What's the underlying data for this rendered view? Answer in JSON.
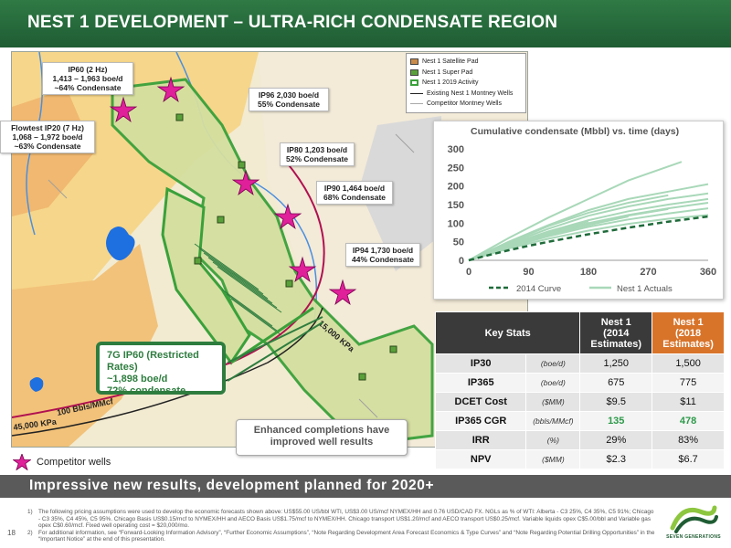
{
  "header": {
    "title": "NEST 1 DEVELOPMENT – ULTRA-RICH CONDENSATE REGION"
  },
  "colors": {
    "brand_green": "#1f5c33",
    "accent_orange": "#d8742a",
    "highlight_green": "#2e9a4a",
    "star_magenta": "#e0209a"
  },
  "map": {
    "legend": [
      {
        "label": "Nest 1 Satellite Pad",
        "kind": "swatch",
        "color": "#c98a4a"
      },
      {
        "label": "Nest 1 Super Pad",
        "kind": "swatch",
        "color": "#5aa03a"
      },
      {
        "label": "Nest 1 2019 Activity",
        "kind": "outline",
        "color": "#3aa13a"
      },
      {
        "label": "Existing Nest 1 Montney Wells",
        "kind": "line",
        "color": "#222222"
      },
      {
        "label": "Competitor Montney Wells",
        "kind": "line",
        "color": "#aaaaaa"
      }
    ],
    "callouts": {
      "ip60": [
        "IP60 (2 Hz)",
        "1,413 – 1,963 boe/d",
        "~64% Condensate"
      ],
      "flowtest": [
        "Flowtest IP20 (7 Hz)",
        "1,068 – 1,972 boe/d",
        "~63% Condensate"
      ],
      "ip96": [
        "IP96 2,030  boe/d",
        "55% Condensate"
      ],
      "ip80": [
        "IP80 1,203 boe/d",
        "52% Condensate"
      ],
      "ip90": [
        "IP90 1,464 boe/d",
        "68% Condensate"
      ],
      "ip94": [
        "IP94 1,730 boe/d",
        "44% Condensate"
      ]
    },
    "ig_callout": [
      "7G IP60 (Restricted Rates)",
      "~1,898 boe/d",
      "72% condensate"
    ],
    "enhanced_callout": [
      "Enhanced completions have",
      "improved well results"
    ],
    "pipeline_labels": [
      "100 Bbls/MMcf",
      "45,000 KPa",
      "15,000 KPa"
    ],
    "competitor_legend": "Competitor wells"
  },
  "chart_data": {
    "type": "line",
    "title": "Cumulative condensate (Mbbl) vs. time (days)",
    "xlabel": "",
    "ylabel": "",
    "xlim": [
      0,
      360
    ],
    "ylim": [
      0,
      300
    ],
    "x_ticks": [
      0,
      90,
      180,
      270,
      360
    ],
    "y_ticks": [
      0,
      50,
      100,
      150,
      200,
      250,
      300
    ],
    "legend_position": "bottom",
    "series": [
      {
        "name": "2014 Curve",
        "style": "dashed",
        "color": "#1f6b3a",
        "x": [
          0,
          30,
          60,
          90,
          120,
          150,
          180,
          210,
          240,
          270,
          300,
          330,
          360
        ],
        "y": [
          0,
          14,
          27,
          39,
          50,
          60,
          70,
          79,
          88,
          96,
          104,
          111,
          118
        ]
      },
      {
        "name": "Nest 1 Actuals",
        "style": "solid",
        "color": "#a8d8b8",
        "lines": [
          {
            "x": [
              0,
              60,
              120,
              180,
              240,
              320
            ],
            "y": [
              0,
              60,
              115,
              165,
              215,
              265
            ]
          },
          {
            "x": [
              0,
              60,
              120,
              180,
              240,
              300,
              360
            ],
            "y": [
              0,
              50,
              95,
              135,
              165,
              185,
              205
            ]
          },
          {
            "x": [
              0,
              60,
              120,
              180,
              240,
              300,
              360
            ],
            "y": [
              0,
              45,
              85,
              120,
              145,
              165,
              180
            ]
          },
          {
            "x": [
              0,
              60,
              120,
              180,
              240,
              300
            ],
            "y": [
              0,
              48,
              92,
              128,
              155,
              175
            ]
          },
          {
            "x": [
              0,
              60,
              120,
              180,
              240,
              300,
              360
            ],
            "y": [
              0,
              42,
              78,
              108,
              132,
              150,
              165
            ]
          },
          {
            "x": [
              0,
              60,
              120,
              180,
              240,
              300,
              360
            ],
            "y": [
              0,
              40,
              72,
              100,
              122,
              140,
              155
            ]
          },
          {
            "x": [
              0,
              60,
              120,
              180,
              240,
              300
            ],
            "y": [
              0,
              38,
              70,
              98,
              120,
              138
            ]
          },
          {
            "x": [
              0,
              60,
              120,
              180,
              240,
              300,
              360
            ],
            "y": [
              0,
              35,
              65,
              90,
              110,
              126,
              140
            ]
          },
          {
            "x": [
              0,
              60,
              120,
              180,
              240
            ],
            "y": [
              0,
              36,
              68,
              95,
              118
            ]
          },
          {
            "x": [
              0,
              60,
              120,
              180,
              240,
              300,
              360
            ],
            "y": [
              0,
              32,
              58,
              80,
              98,
              112,
              122
            ]
          },
          {
            "x": [
              0,
              60,
              120,
              180
            ],
            "y": [
              0,
              40,
              75,
              105
            ]
          }
        ]
      }
    ]
  },
  "stats": {
    "header": {
      "key": "Key Stats",
      "col2014": [
        "Nest 1",
        "(2014",
        "Estimates)"
      ],
      "col2018": [
        "Nest 1",
        "(2018",
        "Estimates)"
      ]
    },
    "rows": [
      {
        "label": "IP30",
        "unit": "(boe/d)",
        "v2014": "1,250",
        "v2018": "1,500",
        "highlight": false
      },
      {
        "label": "IP365",
        "unit": "(boe/d)",
        "v2014": "675",
        "v2018": "775",
        "highlight": false
      },
      {
        "label": "DCET Cost",
        "unit": "($MM)",
        "v2014": "$9.5",
        "v2018": "$11",
        "highlight": false
      },
      {
        "label": "IP365 CGR",
        "unit": "(bbls/MMcf)",
        "v2014": "135",
        "v2018": "478",
        "highlight": true
      },
      {
        "label": "IRR",
        "unit": "(%)",
        "v2014": "29%",
        "v2018": "83%",
        "highlight": false
      },
      {
        "label": "NPV",
        "unit": "($MM)",
        "v2014": "$2.3",
        "v2018": "$6.7",
        "highlight": false
      }
    ]
  },
  "banner": {
    "text": "Impressive new results, development planned for 2020+"
  },
  "footnotes": [
    {
      "num": "1)",
      "text": "The following pricing assumptions were used to develop the economic forecasts shown above: US$55.00 US/bbl WTI, US$3.00 US/mcf NYMEX/HH and 0.76 USD/CAD FX. NGLs as % of WTI: Alberta - C3 25%, C4 35%, C5 91%; Chicago - C3 35%, C4 45%, C5 95%. Chicago Basis US$0.15/mcf to NYMEX/HH and AECO Basis US$1.75/mcf to NYMEX/HH. Chicago transport US$1.20/mcf and AECO transport US$0.25/mcf. Variable liquids opex C$5.00/bbl and Variable gas opex C$0.60/mcf. Fixed well operating cost = $20,000/mo."
    },
    {
      "num": "2)",
      "text": "For additional information, see “Forward-Looking Information Advisory”, “Further Economic Assumptions”, “Note Regarding Development Area Forecast Economics & Type Curves” and “Note Regarding Potential Drilling Opportunities” in the “Important Notice” at the end of this presentation."
    }
  ],
  "page_number": "18",
  "logo": {
    "text": "SEVEN GENERATIONS"
  }
}
